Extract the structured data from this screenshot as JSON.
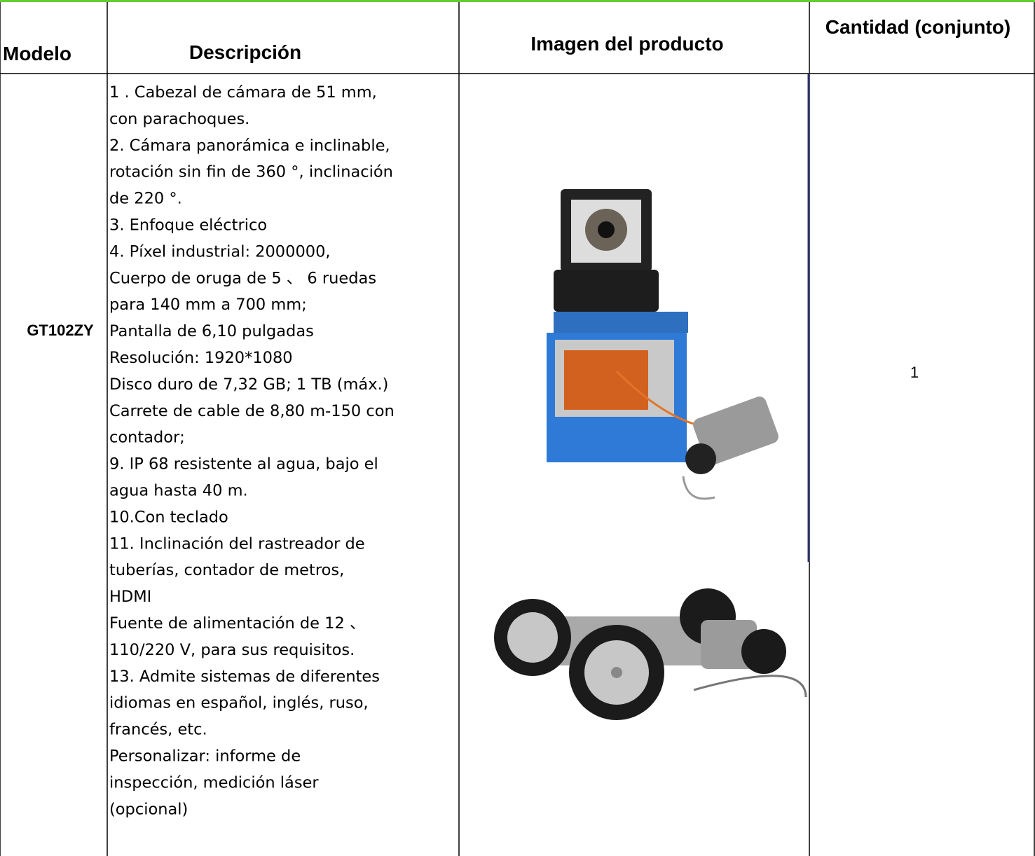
{
  "table": {
    "header": [
      "Modelo",
      "Descripción",
      "Imagen del producto",
      "Cantidad (conjunto)"
    ],
    "rows": [
      {
        "model": "GT102ZY",
        "description": [
          "1 . Cabezal de cámara de 51 mm,",
          "con parachoques.",
          "2. Cámara panorámica e inclinable,",
          "rotación sin fin de 360 °, inclinación",
          "de 220 °.",
          "3. Enfoque eléctrico",
          "4. Píxel industrial: 2000000,",
          "Cuerpo de oruga de 5 、 6 ruedas",
          "para 140 mm a 700 mm;",
          "Pantalla de 6,10 pulgadas",
          "Resolución: 1920*1080",
          "Disco duro de 7,32 GB; 1 TB (máx.)",
          "Carrete de cable de 8,80 m-150 con",
          "contador;",
          "9. IP 68 resistente al agua, bajo el",
          "agua hasta 40 m.",
          "10.Con teclado",
          "11. Inclinación del rastreador de",
          "tuberías, contador de metros,",
          "HDMI",
          "Fuente de alimentación de 12 、",
          "110/220 V, para sus requisitos.",
          "13. Admite sistemas de diferentes",
          "idiomas en español, inglés, ruso,",
          "francés, etc.",
          "Personalizar: informe de",
          "inspección, medición láser",
          "(opcional)"
        ],
        "quantity": 1
      }
    ]
  }
}
